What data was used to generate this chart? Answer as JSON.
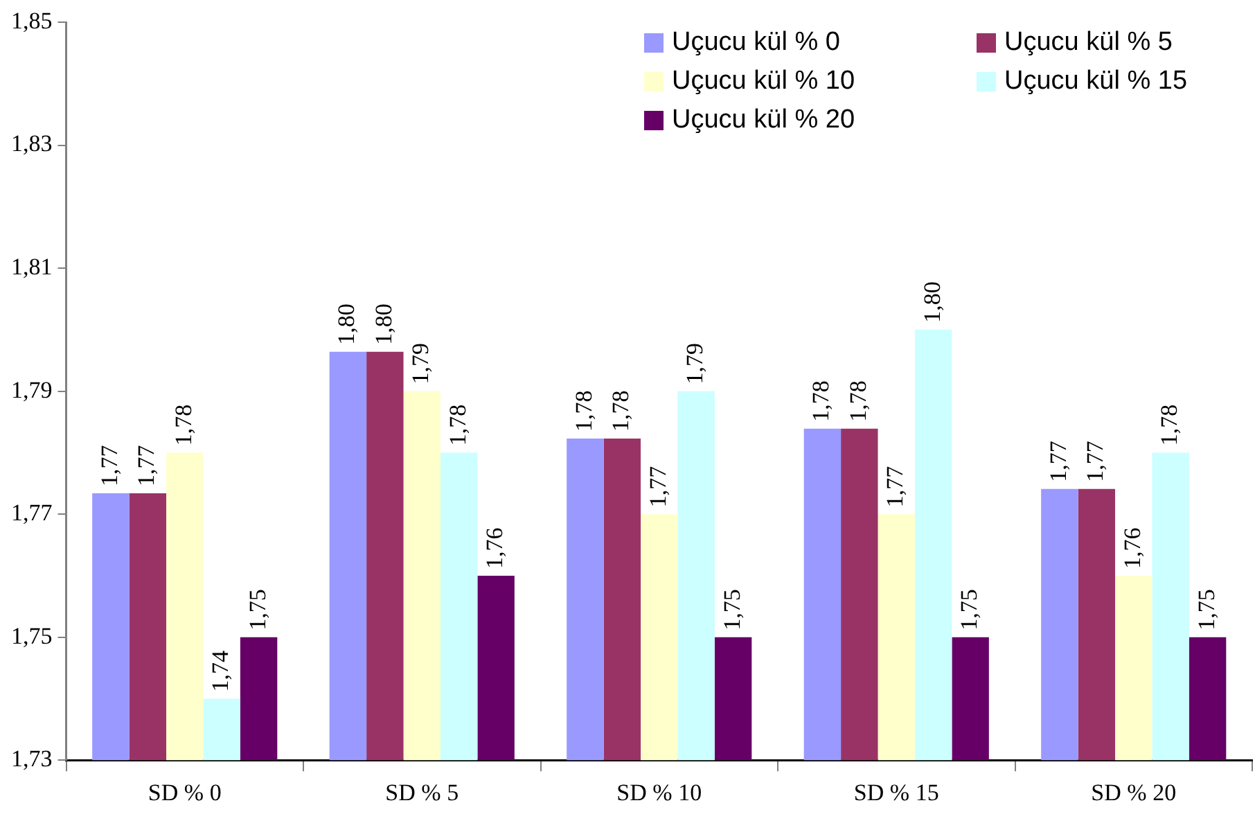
{
  "chart_data": {
    "type": "bar",
    "categories": [
      "SD % 0",
      "SD % 5",
      "SD % 10",
      "SD % 15",
      "SD % 20"
    ],
    "series": [
      {
        "name": "Uçucu kül % 0",
        "color": "#9999ff",
        "values": [
          1.7734,
          1.7964,
          1.7823,
          1.7839,
          1.7741
        ],
        "value_labels": [
          "1,77",
          "1,80",
          "1,78",
          "1,78",
          "1,77"
        ]
      },
      {
        "name": "Uçucu kül % 5",
        "color": "#993366",
        "values": [
          1.7734,
          1.7964,
          1.7823,
          1.7839,
          1.7741
        ],
        "value_labels": [
          "1,77",
          "1,80",
          "1,78",
          "1,78",
          "1,77"
        ]
      },
      {
        "name": "Uçucu kül % 10",
        "color": "#ffffcc",
        "values": [
          1.78,
          1.79,
          1.77,
          1.77,
          1.76
        ],
        "value_labels": [
          "1,78",
          "1,79",
          "1,77",
          "1,77",
          "1,76"
        ]
      },
      {
        "name": "Uçucu kül % 15",
        "color": "#ccffff",
        "values": [
          1.74,
          1.78,
          1.79,
          1.8,
          1.78
        ],
        "value_labels": [
          "1,74",
          "1,78",
          "1,79",
          "1,80",
          "1,78"
        ]
      },
      {
        "name": "Uçucu kül % 20",
        "color": "#660066",
        "values": [
          1.75,
          1.76,
          1.75,
          1.75,
          1.75
        ],
        "value_labels": [
          "1,75",
          "1,76",
          "1,75",
          "1,75",
          "1,75"
        ]
      }
    ],
    "ylim": [
      1.73,
      1.85
    ],
    "yticks": [
      {
        "value": 1.73,
        "label": "1,73"
      },
      {
        "value": 1.75,
        "label": "1,75"
      },
      {
        "value": 1.77,
        "label": "1,77"
      },
      {
        "value": 1.79,
        "label": "1,79"
      },
      {
        "value": 1.81,
        "label": "1,81"
      },
      {
        "value": 1.83,
        "label": "1,83"
      },
      {
        "value": 1.85,
        "label": "1,85"
      }
    ],
    "grid": false,
    "legend": "top right"
  }
}
